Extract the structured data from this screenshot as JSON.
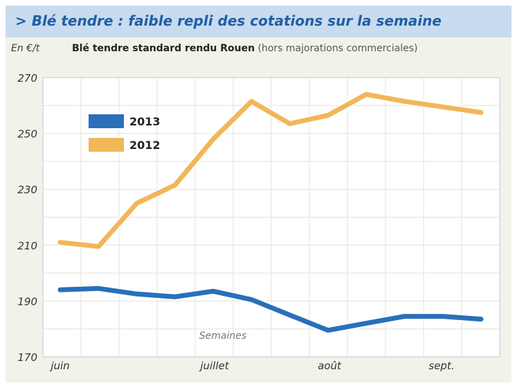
{
  "header": {
    "title": "> Blé tendre : faible repli des cotations sur la semaine"
  },
  "unit_label": "En €/t",
  "chart_data": {
    "type": "line",
    "title": "Blé tendre standard rendu Rouen",
    "title_note": "(hors majorations commerciales)",
    "xlabel": "Semaines",
    "ylabel": "En €/t",
    "ylim": [
      170,
      270
    ],
    "yticks": [
      170,
      190,
      210,
      230,
      250,
      270
    ],
    "month_labels": [
      "juin",
      "juillet",
      "août",
      "sept."
    ],
    "x": [
      1,
      2,
      3,
      4,
      5,
      6,
      7,
      8,
      9,
      10,
      11,
      12
    ],
    "grid": true,
    "legend_position": "top-left",
    "series": [
      {
        "name": "2013",
        "color": "#2a6fba",
        "values": [
          194,
          194.5,
          192.5,
          191.5,
          193.5,
          190.5,
          185,
          179.5,
          182,
          184.5,
          184.5,
          183.5
        ]
      },
      {
        "name": "2012",
        "color": "#f2b65a",
        "values": [
          211,
          209.5,
          225,
          231.5,
          248,
          261.5,
          253.5,
          256.5,
          264,
          261.5,
          259.5,
          257.5
        ]
      }
    ]
  }
}
